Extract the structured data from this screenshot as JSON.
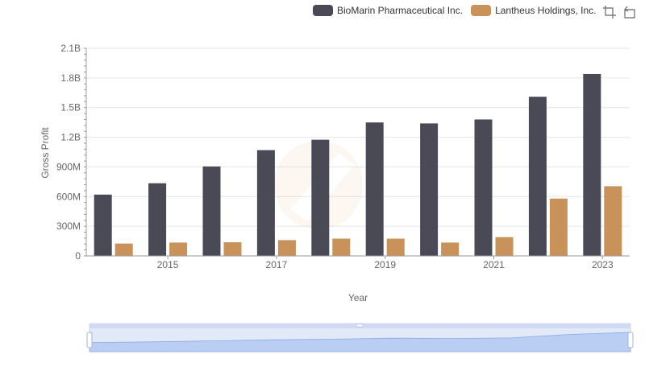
{
  "chart_data": {
    "type": "bar",
    "title": "",
    "xlabel": "Year",
    "ylabel": "Gross Profit",
    "x": [
      2014,
      2015,
      2016,
      2017,
      2018,
      2019,
      2020,
      2021,
      2022,
      2023
    ],
    "x_tick_labels": [
      "2015",
      "2017",
      "2019",
      "2021",
      "2023"
    ],
    "y_tick_labels": [
      "0",
      "300M",
      "600M",
      "900M",
      "1.2B",
      "1.5B",
      "1.8B",
      "2.1B"
    ],
    "ylim": [
      0,
      2100000000
    ],
    "grid": "horizontal",
    "legend_position": "top-right",
    "series": [
      {
        "name": "BioMarin Pharmaceutical Inc.",
        "color": "#4a4a56",
        "values": [
          620000000,
          735000000,
          905000000,
          1070000000,
          1175000000,
          1350000000,
          1340000000,
          1380000000,
          1610000000,
          1840000000
        ]
      },
      {
        "name": "Lantheus Holdings, Inc.",
        "color": "#c9925a",
        "values": [
          125000000,
          135000000,
          138000000,
          160000000,
          175000000,
          175000000,
          135000000,
          190000000,
          580000000,
          705000000
        ]
      }
    ],
    "data_zoom": {
      "start": 0,
      "end": 100
    }
  },
  "toolbar": {
    "icons": [
      "zoom-icon",
      "restore-icon"
    ]
  }
}
